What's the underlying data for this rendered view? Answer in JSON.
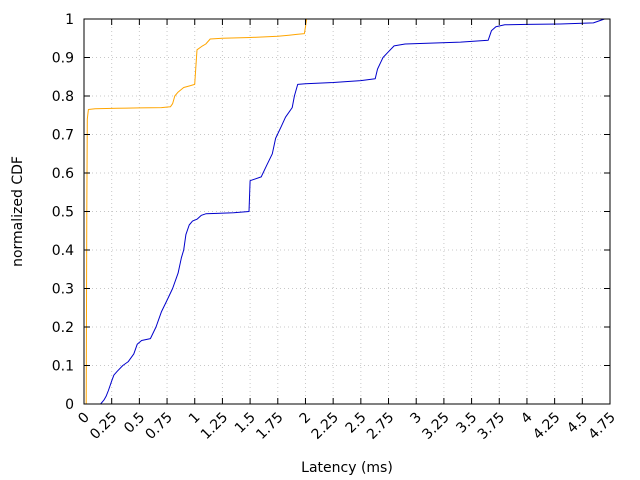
{
  "chart_data": {
    "type": "line",
    "xlabel": "Latency (ms)",
    "ylabel": "normalized CDF",
    "xlim": [
      0,
      4.75
    ],
    "ylim": [
      0,
      1
    ],
    "grid": true,
    "x_ticks": [
      "0",
      "0.25",
      "0.5",
      "0.75",
      "1",
      "1.25",
      "1.5",
      "1.75",
      "2",
      "2.25",
      "2.5",
      "2.75",
      "3",
      "3.25",
      "3.5",
      "3.75",
      "4",
      "4.25",
      "4.5",
      "4.75"
    ],
    "y_ticks": [
      "0",
      "0.1",
      "0.2",
      "0.3",
      "0.4",
      "0.5",
      "0.6",
      "0.7",
      "0.8",
      "0.9",
      "1"
    ],
    "series": [
      {
        "color": "#ffa500",
        "points": [
          [
            0.02,
            0.0
          ],
          [
            0.025,
            0.5
          ],
          [
            0.03,
            0.74
          ],
          [
            0.04,
            0.765
          ],
          [
            0.1,
            0.767
          ],
          [
            0.3,
            0.768
          ],
          [
            0.5,
            0.769
          ],
          [
            0.7,
            0.77
          ],
          [
            0.78,
            0.772
          ],
          [
            0.8,
            0.78
          ],
          [
            0.82,
            0.8
          ],
          [
            0.85,
            0.81
          ],
          [
            0.9,
            0.822
          ],
          [
            0.95,
            0.826
          ],
          [
            1.0,
            0.83
          ],
          [
            1.02,
            0.92
          ],
          [
            1.07,
            0.93
          ],
          [
            1.1,
            0.935
          ],
          [
            1.14,
            0.948
          ],
          [
            1.25,
            0.95
          ],
          [
            1.5,
            0.952
          ],
          [
            1.75,
            0.955
          ],
          [
            1.85,
            0.958
          ],
          [
            1.92,
            0.96
          ],
          [
            1.99,
            0.962
          ],
          [
            2.0,
            0.98
          ],
          [
            2.01,
            1.0
          ]
        ]
      },
      {
        "color": "#0000cc",
        "points": [
          [
            0.15,
            0.0
          ],
          [
            0.18,
            0.01
          ],
          [
            0.2,
            0.02
          ],
          [
            0.22,
            0.035
          ],
          [
            0.25,
            0.06
          ],
          [
            0.27,
            0.075
          ],
          [
            0.3,
            0.085
          ],
          [
            0.35,
            0.1
          ],
          [
            0.4,
            0.11
          ],
          [
            0.45,
            0.13
          ],
          [
            0.48,
            0.155
          ],
          [
            0.52,
            0.165
          ],
          [
            0.6,
            0.17
          ],
          [
            0.65,
            0.2
          ],
          [
            0.7,
            0.24
          ],
          [
            0.75,
            0.27
          ],
          [
            0.8,
            0.3
          ],
          [
            0.85,
            0.34
          ],
          [
            0.88,
            0.38
          ],
          [
            0.9,
            0.4
          ],
          [
            0.92,
            0.44
          ],
          [
            0.95,
            0.465
          ],
          [
            0.98,
            0.475
          ],
          [
            1.02,
            0.48
          ],
          [
            1.06,
            0.49
          ],
          [
            1.1,
            0.494
          ],
          [
            1.2,
            0.495
          ],
          [
            1.35,
            0.497
          ],
          [
            1.49,
            0.5
          ],
          [
            1.5,
            0.58
          ],
          [
            1.6,
            0.59
          ],
          [
            1.65,
            0.62
          ],
          [
            1.7,
            0.65
          ],
          [
            1.73,
            0.69
          ],
          [
            1.78,
            0.72
          ],
          [
            1.82,
            0.745
          ],
          [
            1.88,
            0.77
          ],
          [
            1.9,
            0.8
          ],
          [
            1.93,
            0.83
          ],
          [
            2.0,
            0.832
          ],
          [
            2.25,
            0.835
          ],
          [
            2.5,
            0.84
          ],
          [
            2.63,
            0.845
          ],
          [
            2.65,
            0.87
          ],
          [
            2.7,
            0.9
          ],
          [
            2.75,
            0.915
          ],
          [
            2.8,
            0.93
          ],
          [
            2.9,
            0.935
          ],
          [
            3.1,
            0.937
          ],
          [
            3.4,
            0.94
          ],
          [
            3.65,
            0.945
          ],
          [
            3.68,
            0.97
          ],
          [
            3.72,
            0.98
          ],
          [
            3.8,
            0.985
          ],
          [
            4.0,
            0.986
          ],
          [
            4.3,
            0.987
          ],
          [
            4.6,
            0.99
          ],
          [
            4.7,
            1.0
          ],
          [
            4.75,
            1.0
          ]
        ]
      }
    ]
  }
}
